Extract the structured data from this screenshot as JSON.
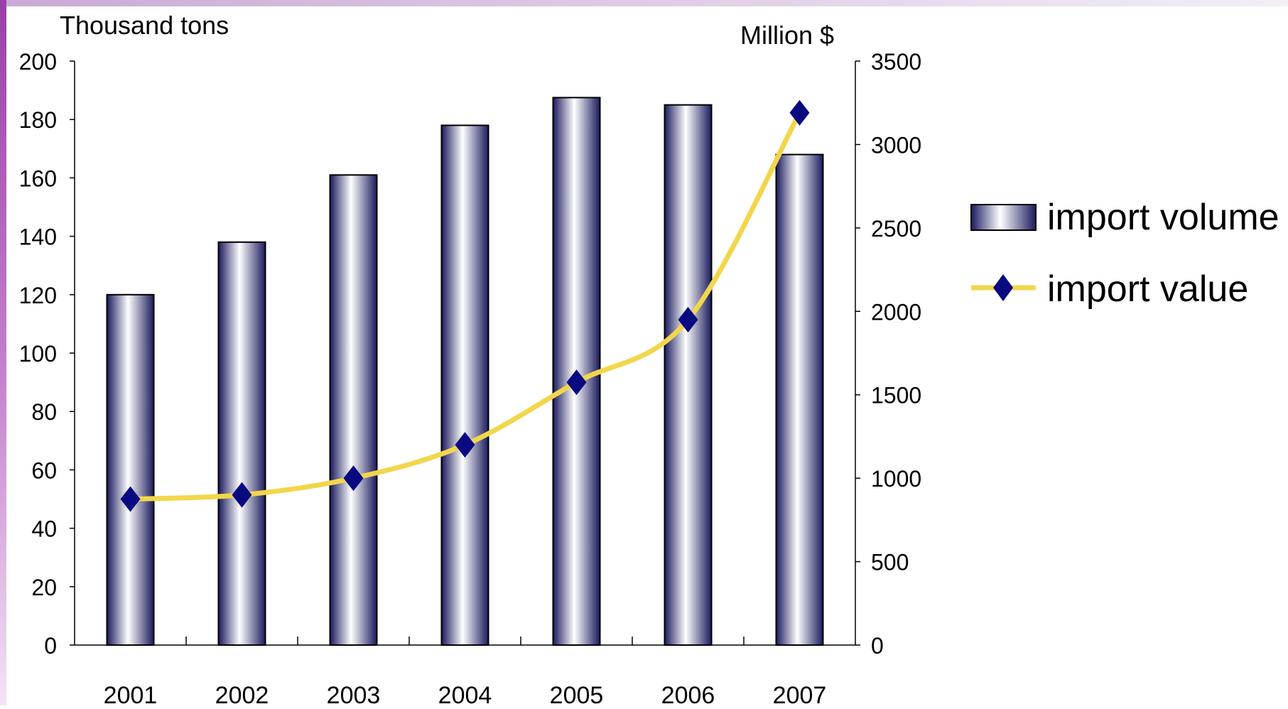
{
  "chart_data": {
    "type": "bar",
    "categories": [
      "2001",
      "2002",
      "2003",
      "2004",
      "2005",
      "2006",
      "2007"
    ],
    "series": [
      {
        "name": "import volume",
        "type": "bar",
        "axis": "left",
        "values": [
          120,
          138,
          161,
          178,
          187.5,
          185,
          168
        ],
        "color": "#1a1a5e"
      },
      {
        "name": "import value",
        "type": "line",
        "axis": "right",
        "values": [
          875,
          900,
          1000,
          1200,
          1575,
          1950,
          3190
        ],
        "color": "#f2d64b",
        "marker_color": "#0a0a80",
        "marker": "diamond"
      }
    ],
    "y_left": {
      "label": "Thousand tons",
      "ylim": [
        0,
        200
      ],
      "ticks": [
        "0",
        "20",
        "40",
        "60",
        "80",
        "100",
        "120",
        "140",
        "160",
        "180",
        "200"
      ]
    },
    "y_right": {
      "label": "Million $",
      "ylim": [
        0,
        3500
      ],
      "ticks": [
        "0",
        "500",
        "1000",
        "1500",
        "2000",
        "2500",
        "3000",
        "3500"
      ]
    },
    "grid": false,
    "legend": "right",
    "decor_colors": {
      "left_band": "#9b3fa8",
      "top_band": "#c9a9d6"
    }
  }
}
